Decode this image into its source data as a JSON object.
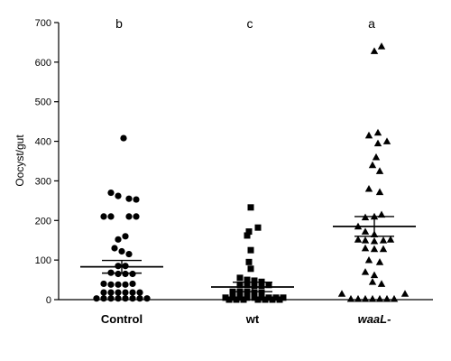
{
  "chart_data": {
    "type": "scatter",
    "ylabel": "Oocyst/gut",
    "ylim": [
      0,
      700
    ],
    "yticks": [
      0,
      100,
      200,
      300,
      400,
      500,
      600,
      700
    ],
    "grid": false,
    "legend": "none",
    "categories": [
      "Control",
      "wt",
      "waaL-"
    ],
    "italic_categories": [
      "waaL-"
    ],
    "significance_letters": [
      "b",
      "c",
      "a"
    ],
    "marker_shapes": [
      "circle",
      "square",
      "triangle"
    ],
    "point_color": "#000000",
    "groups": [
      {
        "category": "Control",
        "mean": 83,
        "sem_lower": 67,
        "sem_upper": 99,
        "points": [
          {
            "dx": 2,
            "y": 408
          },
          {
            "dx": -12,
            "y": 270
          },
          {
            "dx": -4,
            "y": 262
          },
          {
            "dx": 8,
            "y": 255
          },
          {
            "dx": 16,
            "y": 253
          },
          {
            "dx": -20,
            "y": 210
          },
          {
            "dx": -12,
            "y": 210
          },
          {
            "dx": 8,
            "y": 210
          },
          {
            "dx": 16,
            "y": 210
          },
          {
            "dx": 4,
            "y": 160
          },
          {
            "dx": -4,
            "y": 152
          },
          {
            "dx": -8,
            "y": 130
          },
          {
            "dx": 0,
            "y": 122
          },
          {
            "dx": 8,
            "y": 115
          },
          {
            "dx": -4,
            "y": 85
          },
          {
            "dx": 4,
            "y": 85
          },
          {
            "dx": -12,
            "y": 68
          },
          {
            "dx": -4,
            "y": 65
          },
          {
            "dx": 4,
            "y": 65
          },
          {
            "dx": 12,
            "y": 65
          },
          {
            "dx": -20,
            "y": 40
          },
          {
            "dx": -12,
            "y": 38
          },
          {
            "dx": -4,
            "y": 38
          },
          {
            "dx": 4,
            "y": 38
          },
          {
            "dx": 12,
            "y": 40
          },
          {
            "dx": -20,
            "y": 18
          },
          {
            "dx": -12,
            "y": 18
          },
          {
            "dx": -4,
            "y": 18
          },
          {
            "dx": 4,
            "y": 18
          },
          {
            "dx": 12,
            "y": 18
          },
          {
            "dx": 20,
            "y": 18
          },
          {
            "dx": -28,
            "y": 3
          },
          {
            "dx": -20,
            "y": 3
          },
          {
            "dx": -12,
            "y": 3
          },
          {
            "dx": -4,
            "y": 3
          },
          {
            "dx": 4,
            "y": 3
          },
          {
            "dx": 12,
            "y": 3
          },
          {
            "dx": 20,
            "y": 3
          },
          {
            "dx": 28,
            "y": 3
          }
        ]
      },
      {
        "category": "wt",
        "mean": 32,
        "sem_lower": 20,
        "sem_upper": 44,
        "points": [
          {
            "dx": -2,
            "y": 233
          },
          {
            "dx": 6,
            "y": 182
          },
          {
            "dx": -4,
            "y": 172
          },
          {
            "dx": -6,
            "y": 162
          },
          {
            "dx": -2,
            "y": 125
          },
          {
            "dx": -4,
            "y": 95
          },
          {
            "dx": -2,
            "y": 78
          },
          {
            "dx": -14,
            "y": 55
          },
          {
            "dx": -6,
            "y": 50
          },
          {
            "dx": 2,
            "y": 48
          },
          {
            "dx": 10,
            "y": 45
          },
          {
            "dx": -14,
            "y": 37
          },
          {
            "dx": -6,
            "y": 37
          },
          {
            "dx": 2,
            "y": 35
          },
          {
            "dx": 10,
            "y": 35
          },
          {
            "dx": 18,
            "y": 37
          },
          {
            "dx": -22,
            "y": 20
          },
          {
            "dx": -14,
            "y": 20
          },
          {
            "dx": -6,
            "y": 20
          },
          {
            "dx": 2,
            "y": 18
          },
          {
            "dx": 10,
            "y": 18
          },
          {
            "dx": -30,
            "y": 5
          },
          {
            "dx": -22,
            "y": 5
          },
          {
            "dx": -14,
            "y": 5
          },
          {
            "dx": -6,
            "y": 5
          },
          {
            "dx": 2,
            "y": 5
          },
          {
            "dx": 10,
            "y": 5
          },
          {
            "dx": 18,
            "y": 5
          },
          {
            "dx": 26,
            "y": 5
          },
          {
            "dx": 34,
            "y": 5
          },
          {
            "dx": -26,
            "y": 0
          },
          {
            "dx": -18,
            "y": 0
          },
          {
            "dx": -10,
            "y": 0
          },
          {
            "dx": 6,
            "y": 0
          },
          {
            "dx": 14,
            "y": 0
          },
          {
            "dx": 22,
            "y": 0
          },
          {
            "dx": 30,
            "y": 0
          }
        ]
      },
      {
        "category": "waaL-",
        "mean": 185,
        "sem_lower": 160,
        "sem_upper": 210,
        "points": [
          {
            "dx": 8,
            "y": 640
          },
          {
            "dx": 0,
            "y": 628
          },
          {
            "dx": 4,
            "y": 422
          },
          {
            "dx": -6,
            "y": 415
          },
          {
            "dx": 14,
            "y": 400
          },
          {
            "dx": 4,
            "y": 395
          },
          {
            "dx": 2,
            "y": 360
          },
          {
            "dx": -2,
            "y": 340
          },
          {
            "dx": 6,
            "y": 325
          },
          {
            "dx": -6,
            "y": 280
          },
          {
            "dx": 6,
            "y": 272
          },
          {
            "dx": 8,
            "y": 215
          },
          {
            "dx": 0,
            "y": 210
          },
          {
            "dx": -10,
            "y": 208
          },
          {
            "dx": -18,
            "y": 185
          },
          {
            "dx": -10,
            "y": 172
          },
          {
            "dx": 0,
            "y": 165
          },
          {
            "dx": -18,
            "y": 152
          },
          {
            "dx": -10,
            "y": 150
          },
          {
            "dx": 0,
            "y": 148
          },
          {
            "dx": 10,
            "y": 150
          },
          {
            "dx": 18,
            "y": 152
          },
          {
            "dx": -10,
            "y": 130
          },
          {
            "dx": 0,
            "y": 128
          },
          {
            "dx": 10,
            "y": 128
          },
          {
            "dx": -6,
            "y": 100
          },
          {
            "dx": 6,
            "y": 95
          },
          {
            "dx": -10,
            "y": 70
          },
          {
            "dx": 0,
            "y": 62
          },
          {
            "dx": -2,
            "y": 45
          },
          {
            "dx": 8,
            "y": 40
          },
          {
            "dx": -36,
            "y": 15
          },
          {
            "dx": 34,
            "y": 15
          },
          {
            "dx": -26,
            "y": 2
          },
          {
            "dx": -18,
            "y": 2
          },
          {
            "dx": -10,
            "y": 2
          },
          {
            "dx": -2,
            "y": 2
          },
          {
            "dx": 6,
            "y": 2
          },
          {
            "dx": 14,
            "y": 2
          },
          {
            "dx": 22,
            "y": 2
          }
        ]
      }
    ]
  }
}
